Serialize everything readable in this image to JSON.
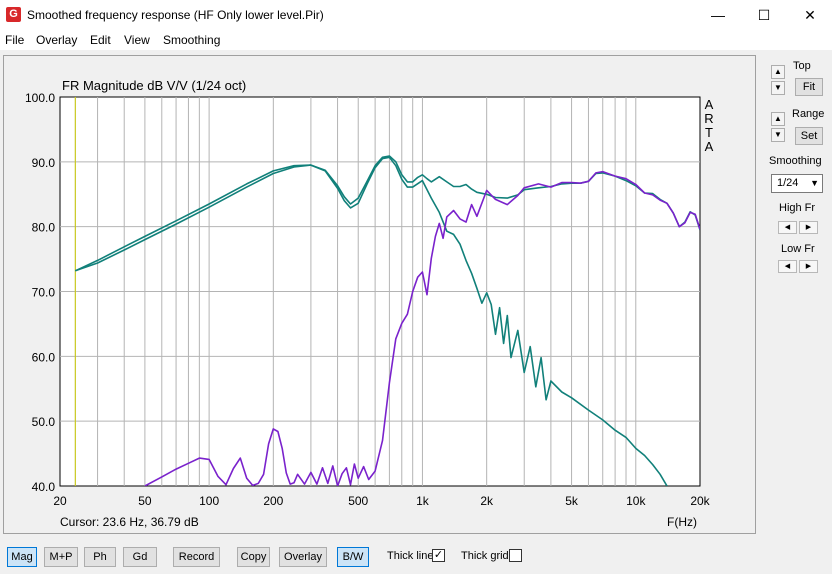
{
  "window": {
    "icon_glyph": "G",
    "title": "Smoothed frequency response (HF Only lower level.Pir)",
    "minimize_glyph": "—",
    "maximize_glyph": "☐",
    "close_glyph": "✕"
  },
  "menu": [
    "File",
    "Overlay",
    "Edit",
    "View",
    "Smoothing"
  ],
  "chart_data": {
    "type": "line",
    "title": "FR Magnitude dB V/V (1/24 oct)",
    "watermark": "ARTA",
    "xlabel": "F(Hz)",
    "x_scale": "log",
    "xlim": [
      20,
      20000
    ],
    "ylim": [
      40,
      100
    ],
    "x_ticks": [
      20,
      50,
      100,
      200,
      500,
      1000,
      2000,
      5000,
      10000,
      20000
    ],
    "x_tick_labels": [
      "20",
      "50",
      "100",
      "200",
      "500",
      "1k",
      "2k",
      "5k",
      "10k",
      "20k"
    ],
    "y_ticks": [
      40,
      50,
      60,
      70,
      80,
      90,
      100
    ],
    "y_tick_labels": [
      "40.0",
      "50.0",
      "60.0",
      "70.0",
      "80.0",
      "90.0",
      "100.0"
    ],
    "grid": true,
    "cursor": {
      "freq": 23.6,
      "readout": "Cursor: 23.6 Hz, 36.79 dB"
    },
    "colors": {
      "background": "#ffffff",
      "grid": "#b4b4b4",
      "teal": "#11807a",
      "purple": "#7a22cc",
      "cursor": "#c8c820"
    },
    "series": [
      {
        "color": "#11807a",
        "x": [
          23.6,
          30,
          40,
          50,
          70,
          100,
          150,
          200,
          250,
          300,
          350,
          400,
          430,
          460,
          500,
          550,
          600,
          650,
          700,
          750,
          800,
          850,
          900,
          950,
          1000,
          1050,
          1100,
          1200,
          1300,
          1400,
          1500,
          1600,
          1700,
          1800,
          2000,
          2200,
          2500,
          2800,
          3000,
          3500,
          4000,
          4500,
          5000,
          5500,
          6000,
          6500,
          7000,
          8000,
          9000,
          10000,
          11000,
          12000,
          13000,
          14000,
          15000,
          16000,
          17000,
          18000,
          19000,
          20000
        ],
        "y": [
          73.2,
          74.8,
          76.9,
          78.5,
          80.9,
          83.5,
          86.6,
          88.6,
          89.4,
          89.5,
          88.7,
          86.3,
          84.6,
          83.5,
          84.4,
          87.0,
          89.4,
          90.7,
          90.9,
          90.0,
          88.0,
          86.9,
          86.9,
          87.6,
          88.0,
          87.4,
          86.9,
          87.7,
          86.9,
          86.2,
          86.2,
          86.5,
          85.8,
          85.3,
          85.0,
          84.5,
          84.4,
          84.9,
          85.7,
          86.0,
          86.2,
          86.6,
          86.7,
          86.7,
          87.0,
          88.2,
          88.3,
          87.8,
          87.1,
          86.3,
          85.2,
          85.1,
          84.2,
          83.6,
          82.1,
          80.0,
          80.7,
          82.3,
          81.8,
          79.5
        ]
      },
      {
        "color": "#11807a",
        "x": [
          23.6,
          30,
          40,
          50,
          70,
          100,
          150,
          200,
          250,
          300,
          350,
          400,
          430,
          460,
          500,
          550,
          600,
          650,
          700,
          750,
          800,
          850,
          900,
          1000,
          1100,
          1200,
          1300,
          1400,
          1500,
          1600,
          1700,
          1800,
          1900,
          2000,
          2100,
          2200,
          2300,
          2400,
          2500,
          2600,
          2800,
          3000,
          3200,
          3400,
          3600,
          3800,
          4000,
          4500,
          5000,
          6000,
          7000,
          8000,
          9000,
          10000,
          11000,
          12000,
          13000,
          14000
        ],
        "y": [
          73.2,
          74.4,
          76.4,
          78.0,
          80.4,
          83.0,
          86.1,
          88.2,
          89.2,
          89.5,
          88.6,
          85.9,
          84.0,
          82.9,
          83.6,
          86.6,
          89.1,
          90.5,
          90.7,
          89.4,
          87.3,
          86.1,
          86.1,
          87.1,
          84.4,
          82.2,
          79.3,
          78.8,
          77.3,
          74.8,
          72.8,
          70.5,
          68.2,
          69.8,
          68.0,
          63.4,
          67.5,
          62.0,
          66.3,
          59.8,
          64.0,
          57.5,
          61.5,
          55.3,
          59.8,
          53.3,
          56.2,
          54.5,
          53.6,
          51.7,
          50.2,
          48.6,
          47.5,
          45.8,
          44.7,
          43.3,
          41.8,
          40.0
        ]
      },
      {
        "color": "#7a22cc",
        "x": [
          50,
          60,
          70,
          80,
          90,
          100,
          110,
          120,
          130,
          140,
          150,
          160,
          170,
          180,
          190,
          200,
          210,
          220,
          230,
          240,
          250,
          260,
          280,
          300,
          320,
          340,
          360,
          380,
          400,
          420,
          440,
          460,
          480,
          500,
          530,
          560,
          600,
          650,
          700,
          750,
          800,
          850,
          900,
          950,
          1000,
          1050,
          1100,
          1150,
          1200,
          1250,
          1300,
          1400,
          1500,
          1600,
          1700,
          1800,
          2000,
          2200,
          2500,
          2800,
          3000,
          3500,
          4000,
          4500,
          5000,
          5500,
          6000,
          6500,
          7000,
          8000,
          9000,
          10000,
          11000,
          12000,
          13000,
          14000,
          15000,
          16000,
          17000,
          18000,
          19000,
          20000
        ],
        "y": [
          40.0,
          41.4,
          42.6,
          43.5,
          44.3,
          44.1,
          41.5,
          40.2,
          42.7,
          44.3,
          41.2,
          40.1,
          40.4,
          41.8,
          46.5,
          48.8,
          48.4,
          45.8,
          42.0,
          40.3,
          40.5,
          41.8,
          40.3,
          42.1,
          40.3,
          42.8,
          40.4,
          43.1,
          40.0,
          41.9,
          42.8,
          40.2,
          43.4,
          41.2,
          43.0,
          41.0,
          42.3,
          47.0,
          55.9,
          62.7,
          65.1,
          66.5,
          70.0,
          72.2,
          73.0,
          69.5,
          75.1,
          78.5,
          80.5,
          78.2,
          81.5,
          82.5,
          81.2,
          80.7,
          83.4,
          81.6,
          85.6,
          84.2,
          83.4,
          84.8,
          86.0,
          86.6,
          86.1,
          86.8,
          86.8,
          86.7,
          87.0,
          88.3,
          88.5,
          87.8,
          87.4,
          86.5,
          85.2,
          84.9,
          84.1,
          83.6,
          82.1,
          80.0,
          80.6,
          82.2,
          81.9,
          79.6
        ]
      }
    ]
  },
  "right_panel": {
    "top_label": "Top",
    "fit_label": "Fit",
    "range_label": "Range",
    "set_label": "Set",
    "smoothing_label": "Smoothing",
    "smoothing_value": "1/24",
    "hf_label": "High Fr",
    "lf_label": "Low Fr"
  },
  "toolbar": {
    "mag": "Mag",
    "mp": "M+P",
    "ph": "Ph",
    "gd": "Gd",
    "record": "Record",
    "copy": "Copy",
    "overlay": "Overlay",
    "bw": "B/W",
    "thick_line": "Thick line",
    "thick_line_checked": true,
    "thick_grid": "Thick grid",
    "thick_grid_checked": false
  }
}
